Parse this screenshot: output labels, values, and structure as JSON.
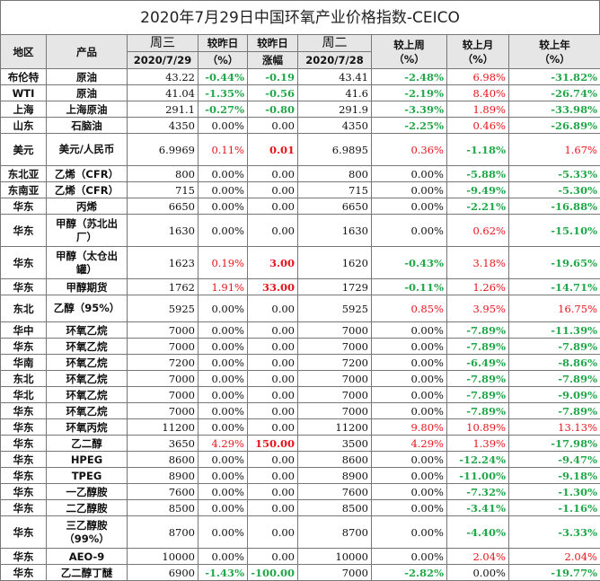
{
  "title": "2020年7月29日中国环氧产业价格指数-CEICO",
  "header": {
    "region": "地区",
    "product": "产品",
    "wed": "周三",
    "wed_date": "2020/7/29",
    "vs_yday": "较昨日",
    "vs_yday_unit": "（%）",
    "vs_yday2": "较昨日",
    "vs_yday2_sub": "涨幅",
    "tue": "周二",
    "tue_date": "2020/7/28",
    "vs_week": "较上周",
    "vs_week_unit": "（%）",
    "vs_month": "较上月",
    "vs_month_unit": "（%）",
    "vs_year": "较上年",
    "vs_year_unit": "（%）"
  },
  "rows": [
    {
      "region": "布伦特",
      "product": "原油",
      "wed": "43.22",
      "pct_day": "-0.44%",
      "chg_day": "-0.19",
      "tue": "43.41",
      "week": "-2.48%",
      "month": "6.98%",
      "year": "-31.82%"
    },
    {
      "region": "WTI",
      "product": "原油",
      "wed": "41.04",
      "pct_day": "-1.35%",
      "chg_day": "-0.56",
      "tue": "41.6",
      "week": "-2.19%",
      "month": "8.40%",
      "year": "-26.74%"
    },
    {
      "region": "上海",
      "product": "上海原油",
      "wed": "291.1",
      "pct_day": "-0.27%",
      "chg_day": "-0.80",
      "tue": "291.9",
      "week": "-3.39%",
      "month": "1.89%",
      "year": "-33.98%"
    },
    {
      "region": "山东",
      "product": "石脑油",
      "wed": "4350",
      "pct_day": "0.00%",
      "chg_day": "0.00",
      "tue": "4350",
      "week": "-2.25%",
      "month": "0.46%",
      "year": "-26.89%"
    },
    {
      "region": "美元",
      "product": "美元/人民币",
      "wed": "6.9969",
      "pct_day": "0.11%",
      "chg_day": "0.01",
      "tue": "6.9895",
      "week": "0.36%",
      "month": "-1.18%",
      "year": "1.67%"
    },
    {
      "region": "东北亚",
      "product": "乙烯（CFR）",
      "wed": "800",
      "pct_day": "0.00%",
      "chg_day": "0.00",
      "tue": "800",
      "week": "0.00%",
      "month": "-5.88%",
      "year": "-5.33%"
    },
    {
      "region": "东南亚",
      "product": "乙烯（CFR）",
      "wed": "715",
      "pct_day": "0.00%",
      "chg_day": "0.00",
      "tue": "715",
      "week": "0.00%",
      "month": "-9.49%",
      "year": "-5.30%"
    },
    {
      "region": "华东",
      "product": "丙烯",
      "wed": "6650",
      "pct_day": "0.00%",
      "chg_day": "0.00",
      "tue": "6650",
      "week": "0.00%",
      "month": "-2.21%",
      "year": "-16.88%"
    },
    {
      "region": "华东",
      "product": "甲醇（苏北出厂）",
      "wed": "1630",
      "pct_day": "0.00%",
      "chg_day": "0.00",
      "tue": "1630",
      "week": "0.00%",
      "month": "0.62%",
      "year": "-15.10%"
    },
    {
      "region": "华东",
      "product": "甲醇（太仓出罐）",
      "wed": "1623",
      "pct_day": "0.19%",
      "chg_day": "3.00",
      "tue": "1620",
      "week": "-0.43%",
      "month": "3.18%",
      "year": "-19.65%"
    },
    {
      "region": "华东",
      "product": "甲醇期货",
      "wed": "1762",
      "pct_day": "1.91%",
      "chg_day": "33.00",
      "tue": "1729",
      "week": "-0.11%",
      "month": "1.26%",
      "year": "-14.71%"
    },
    {
      "region": "东北",
      "product": "乙醇（95%）",
      "wed": "5925",
      "pct_day": "0.00%",
      "chg_day": "0.00",
      "tue": "5925",
      "week": "0.85%",
      "month": "3.95%",
      "year": "16.75%"
    },
    {
      "region": "华中",
      "product": "环氧乙烷",
      "wed": "7000",
      "pct_day": "0.00%",
      "chg_day": "0.00",
      "tue": "7000",
      "week": "0.00%",
      "month": "-7.89%",
      "year": "-11.39%"
    },
    {
      "region": "华东",
      "product": "环氧乙烷",
      "wed": "7000",
      "pct_day": "0.00%",
      "chg_day": "0.00",
      "tue": "7000",
      "week": "0.00%",
      "month": "-7.89%",
      "year": "-7.89%"
    },
    {
      "region": "华南",
      "product": "环氧乙烷",
      "wed": "7200",
      "pct_day": "0.00%",
      "chg_day": "0.00",
      "tue": "7200",
      "week": "0.00%",
      "month": "-6.49%",
      "year": "-8.86%"
    },
    {
      "region": "东北",
      "product": "环氧乙烷",
      "wed": "7000",
      "pct_day": "0.00%",
      "chg_day": "0.00",
      "tue": "7000",
      "week": "0.00%",
      "month": "-7.89%",
      "year": "-7.89%"
    },
    {
      "region": "华北",
      "product": "环氧乙烷",
      "wed": "7000",
      "pct_day": "0.00%",
      "chg_day": "0.00",
      "tue": "7000",
      "week": "0.00%",
      "month": "-7.89%",
      "year": "-9.09%"
    },
    {
      "region": "华东",
      "product": "环氧乙烷",
      "wed": "7000",
      "pct_day": "0.00%",
      "chg_day": "0.00",
      "tue": "7000",
      "week": "0.00%",
      "month": "-7.89%",
      "year": "-7.89%"
    },
    {
      "region": "华东",
      "product": "环氧丙烷",
      "wed": "11200",
      "pct_day": "0.00%",
      "chg_day": "0.00",
      "tue": "11200",
      "week": "9.80%",
      "month": "10.89%",
      "year": "13.13%"
    },
    {
      "region": "华东",
      "product": "乙二醇",
      "wed": "3650",
      "pct_day": "4.29%",
      "chg_day": "150.00",
      "tue": "3500",
      "week": "4.29%",
      "month": "1.39%",
      "year": "-17.98%"
    },
    {
      "region": "华东",
      "product": "HPEG",
      "wed": "8600",
      "pct_day": "0.00%",
      "chg_day": "0.00",
      "tue": "8600",
      "week": "0.00%",
      "month": "-12.24%",
      "year": "-9.47%"
    },
    {
      "region": "华东",
      "product": "TPEG",
      "wed": "8900",
      "pct_day": "0.00%",
      "chg_day": "0.00",
      "tue": "8900",
      "week": "0.00%",
      "month": "-11.00%",
      "year": "-9.18%"
    },
    {
      "region": "华东",
      "product": "一乙醇胺",
      "wed": "7600",
      "pct_day": "0.00%",
      "chg_day": "0.00",
      "tue": "7600",
      "week": "0.00%",
      "month": "-7.32%",
      "year": "-1.30%"
    },
    {
      "region": "华东",
      "product": "二乙醇胺",
      "wed": "8500",
      "pct_day": "0.00%",
      "chg_day": "0.00",
      "tue": "8500",
      "week": "0.00%",
      "month": "-3.41%",
      "year": "-1.16%"
    },
    {
      "region": "华东",
      "product": "三乙醇胺（99%）",
      "wed": "8700",
      "pct_day": "0.00%",
      "chg_day": "0.00",
      "tue": "8700",
      "week": "0.00%",
      "month": "-4.40%",
      "year": "-3.33%"
    },
    {
      "region": "华东",
      "product": "AEO-9",
      "wed": "10000",
      "pct_day": "0.00%",
      "chg_day": "0.00",
      "tue": "10000",
      "week": "0.00%",
      "month": "2.04%",
      "year": "2.04%"
    },
    {
      "region": "华东",
      "product": "乙二醇丁醚",
      "wed": "6900",
      "pct_day": "-1.43%",
      "chg_day": "-100.00",
      "tue": "7000",
      "week": "-2.82%",
      "month": "0.00%",
      "year": "-19.77%"
    }
  ],
  "colors": {
    "up": "#e8141b",
    "down": "#22a84a",
    "flat": "#111111",
    "header_bg": "#e6e6e6"
  }
}
